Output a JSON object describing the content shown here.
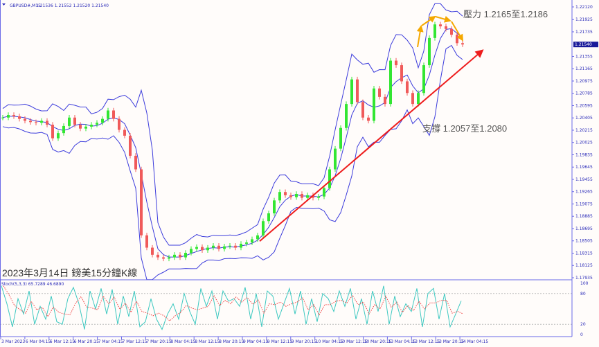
{
  "header": {
    "symbol": "GBPUSD#,M15",
    "ohlc": "1.21536 1.21552 1.21520 1.21540"
  },
  "caption": "2023年3月14日 鎊美15分鐘K線",
  "annotations": {
    "resistance": "壓力 1.2165至1.2186",
    "support": "支撐 1.2057至1.2080"
  },
  "stoch_header": "Stoch(5,3,3) 65.7289 46.6890",
  "colors": {
    "bull": "#32e632",
    "bear": "#f05a5a",
    "band": "#3b3bdc",
    "trend": "#ee1c1c",
    "arrow": "#f5a800",
    "stoch_main": "#3cc8c0",
    "stoch_signal": "#f04040",
    "axis": "#6a6ae8",
    "price_tag": "#1a1a9a"
  },
  "chart_data": {
    "type": "candlestick",
    "indicators": [
      "Bollinger Bands",
      "Stochastic(5,3,3)"
    ],
    "price_axis": {
      "ticks": [
        "1.22120",
        "1.21925",
        "1.21735",
        "1.21540",
        "1.21355",
        "1.21165",
        "1.20975",
        "1.20785",
        "1.20595",
        "1.20405",
        "1.20215",
        "1.20025",
        "1.19835",
        "1.19645",
        "1.19455",
        "1.19265",
        "1.19075",
        "1.18885",
        "1.18695",
        "1.18505",
        "1.18315",
        "1.18125",
        "1.17935"
      ],
      "range": [
        1.17935,
        1.2212
      ],
      "current": "1.21540"
    },
    "time_axis": {
      "ticks": [
        "3 Mar 2023",
        "6 Mar 04:15",
        "6 Mar 12:15",
        "6 Mar 20:15",
        "7 Mar 04:15",
        "7 Mar 12:15",
        "7 Mar 20:15",
        "8 Mar 04:15",
        "8 Mar 12:15",
        "8 Mar 20:15",
        "9 Mar 04:15",
        "9 Mar 12:15",
        "9 Mar 20:15",
        "10 Mar 04:15",
        "10 Mar 12:15",
        "10 Mar 20:15",
        "13 Mar 04:15",
        "13 Mar 12:15",
        "13 Mar 20:15",
        "14 Mar 04:15"
      ]
    },
    "close": [
      1.2041,
      1.2045,
      1.2043,
      1.2039,
      1.2036,
      1.2034,
      1.2033,
      1.2036,
      1.203,
      1.2009,
      1.2017,
      1.2028,
      1.2041,
      1.203,
      1.2024,
      1.2027,
      1.203,
      1.2033,
      1.2039,
      1.2052,
      1.2039,
      1.2022,
      1.2013,
      1.1982,
      1.1961,
      1.1859,
      1.184,
      1.1829,
      1.1825,
      1.1823,
      1.1825,
      1.1829,
      1.1825,
      1.1832,
      1.1838,
      1.1841,
      1.1836,
      1.184,
      1.1843,
      1.1838,
      1.1842,
      1.1843,
      1.184,
      1.1846,
      1.1848,
      1.1853,
      1.1859,
      1.1881,
      1.1893,
      1.1913,
      1.1926,
      1.1921,
      1.1918,
      1.1923,
      1.1917,
      1.1921,
      1.1917,
      1.1919,
      1.1932,
      1.1961,
      1.1993,
      1.2025,
      1.2062,
      1.21,
      1.2065,
      1.2041,
      1.2036,
      1.2086,
      1.2073,
      1.2062,
      1.2129,
      1.2122,
      1.2097,
      1.2079,
      1.2062,
      1.2079,
      1.2122,
      1.2164,
      1.2185,
      1.2182,
      1.2178,
      1.2169,
      1.2156,
      1.2154
    ],
    "stoch": {
      "levels": [
        80,
        20
      ],
      "range": [
        0,
        100
      ],
      "ticks": [
        "100",
        "80",
        "20",
        "0"
      ],
      "k": [
        95,
        60,
        15,
        70,
        40,
        85,
        20,
        55,
        30,
        75,
        25,
        20,
        70,
        92,
        60,
        10,
        85,
        50,
        90,
        40,
        88,
        20,
        75,
        35,
        85,
        15,
        25,
        70,
        30,
        10,
        40,
        60,
        30,
        80,
        45,
        20,
        90,
        55,
        85,
        30,
        85,
        65,
        70,
        55,
        92,
        30,
        80,
        15,
        85,
        75,
        30,
        60,
        90,
        40,
        85,
        20,
        70,
        25,
        80,
        70,
        45,
        85,
        55,
        90,
        30,
        70,
        20,
        85,
        45,
        95,
        20,
        75,
        35,
        60,
        45,
        90,
        15,
        80,
        90,
        30,
        80,
        15,
        40,
        65.7
      ]
    },
    "trendline": {
      "from": 1.185,
      "to": 1.2145
    },
    "resistance": [
      1.2165,
      1.2186
    ],
    "support": [
      1.2057,
      1.208
    ]
  }
}
